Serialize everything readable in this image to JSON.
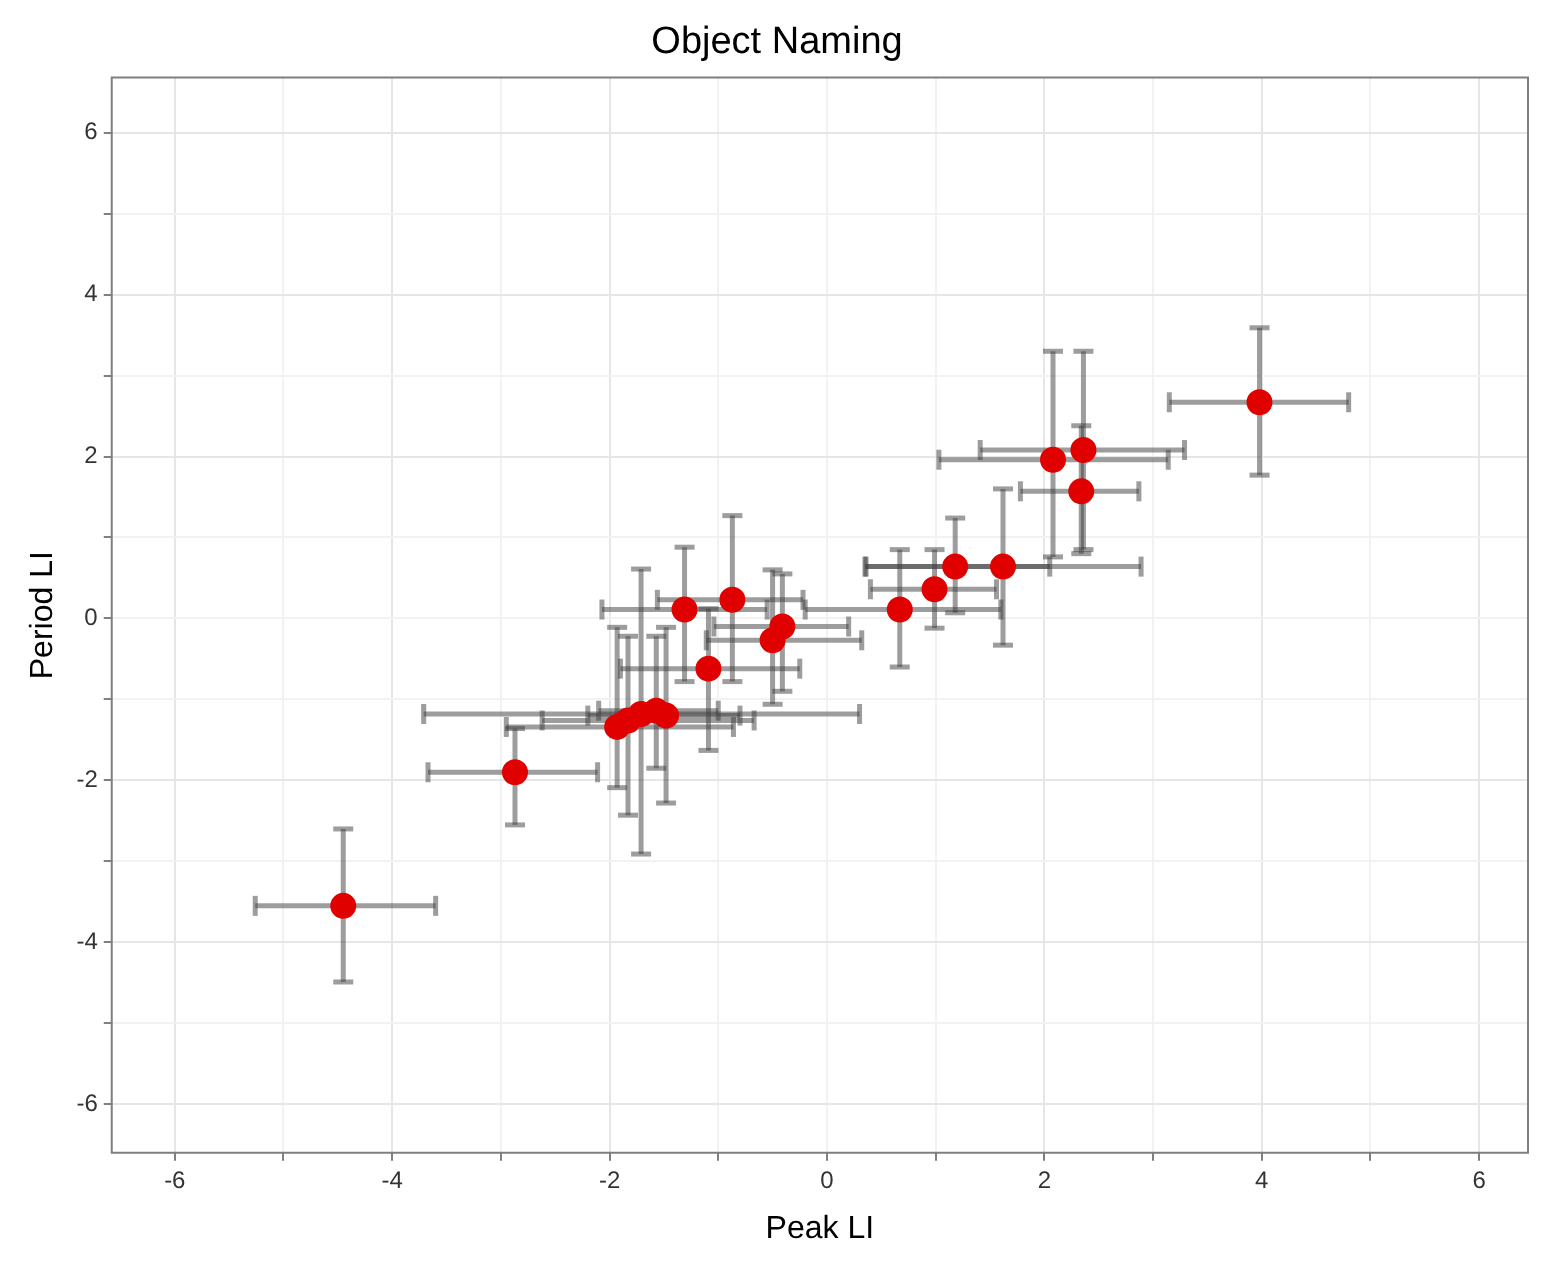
{
  "chart_data": {
    "type": "scatter",
    "title": "Object Naming",
    "xlabel": "Peak LI",
    "ylabel": "Period LI",
    "x": [
      -4.45,
      -2.87,
      -1.93,
      -1.83,
      -1.71,
      -1.57,
      -1.48,
      -1.09,
      -1.31,
      -0.87,
      -0.5,
      -0.41,
      0.67,
      0.99,
      1.18,
      1.62,
      2.08,
      2.36,
      2.34,
      3.98
    ],
    "series": [
      {
        "color": "#e00000",
        "values": [
          -3.55,
          -1.9,
          -1.34,
          -1.26,
          -1.18,
          -1.14,
          -1.2,
          -0.62,
          0.11,
          0.23,
          -0.27,
          -0.1,
          0.11,
          0.36,
          0.64,
          0.64,
          1.96,
          2.08,
          1.57,
          2.67
        ],
        "errors": [
          [
            -4.49,
            -2.6
          ],
          [
            -2.55,
            -1.36
          ],
          [
            -2.09,
            -0.11
          ],
          [
            -2.43,
            -0.22
          ],
          [
            -2.91,
            0.61
          ],
          [
            -1.85,
            -0.22
          ],
          [
            -2.28,
            -0.11
          ],
          [
            -1.63,
            0.12
          ],
          [
            -0.78,
            0.88
          ],
          [
            -0.78,
            1.27
          ],
          [
            -1.06,
            0.6
          ],
          [
            -0.9,
            0.55
          ],
          [
            -0.6,
            0.85
          ],
          [
            -0.12,
            0.85
          ],
          [
            0.07,
            1.24
          ],
          [
            -0.33,
            1.6
          ],
          [
            0.76,
            3.3
          ],
          [
            0.85,
            3.3
          ],
          [
            0.8,
            2.38
          ],
          [
            1.77,
            3.59
          ]
        ],
        "xerrors": [
          [
            -5.26,
            -3.6
          ],
          [
            -3.67,
            -2.11
          ],
          [
            -2.95,
            -0.86
          ],
          [
            -2.62,
            -0.67
          ],
          [
            -3.71,
            0.3
          ],
          [
            -2.1,
            -1.0
          ],
          [
            -2.2,
            -0.8
          ],
          [
            -1.9,
            -0.25
          ],
          [
            -2.07,
            -0.55
          ],
          [
            -1.56,
            -0.22
          ],
          [
            -1.11,
            0.32
          ],
          [
            -1.04,
            0.2
          ],
          [
            -0.2,
            1.6
          ],
          [
            0.4,
            1.56
          ],
          [
            0.35,
            2.05
          ],
          [
            0.36,
            2.89
          ],
          [
            1.03,
            3.14
          ],
          [
            1.41,
            3.29
          ],
          [
            1.78,
            2.87
          ],
          [
            3.15,
            4.8
          ]
        ]
      }
    ],
    "xlim": [
      -6.58,
      6.45
    ],
    "ylim": [
      -6.6,
      6.68
    ],
    "xticks": [
      -6,
      {
        "value": -5,
        "label": null
      },
      -4,
      {
        "value": -3,
        "label": null
      },
      -2,
      {
        "value": -1,
        "label": null
      },
      0,
      {
        "value": 1,
        "label": null
      },
      2,
      {
        "value": 3,
        "label": null
      },
      4,
      {
        "value": 5,
        "label": null
      },
      6
    ],
    "yticks": [
      -6,
      {
        "value": -5,
        "label": null
      },
      -4,
      {
        "value": -3,
        "label": null
      },
      -2,
      {
        "value": -1,
        "label": null
      },
      0,
      {
        "value": 1,
        "label": null
      },
      2,
      {
        "value": 3,
        "label": null
      },
      4,
      {
        "value": 5,
        "label": null
      },
      6
    ],
    "grid": true,
    "legend": false,
    "marker": "circle"
  }
}
